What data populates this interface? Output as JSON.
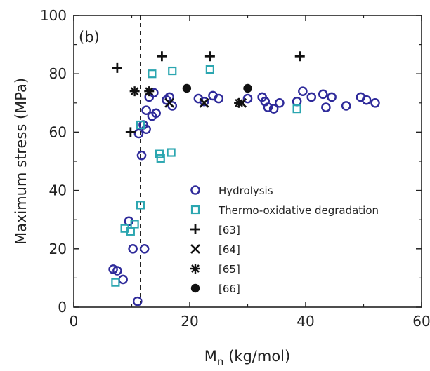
{
  "chart_data": {
    "type": "scatter",
    "panel_label": "(b)",
    "xlabel": "M",
    "xlabel_subscript": "n",
    "xlabel_unit": " (kg/mol)",
    "ylabel": "Maximum stress (MPa)",
    "xlim": [
      0,
      60
    ],
    "ylim": [
      0,
      100
    ],
    "x_ticks": [
      0,
      20,
      40,
      60
    ],
    "y_ticks": [
      0,
      20,
      40,
      60,
      80,
      100
    ],
    "grid": false,
    "legend_position": "bottom-right",
    "vertical_reference_line": {
      "x": 11.5,
      "style": "dashed"
    },
    "series": [
      {
        "name": "Hydrolysis",
        "marker": "circle-open",
        "color": "#2e2a9a",
        "points": [
          [
            6.8,
            13
          ],
          [
            7.5,
            12.5
          ],
          [
            8.5,
            9.5
          ],
          [
            9.5,
            29.5
          ],
          [
            10.2,
            20
          ],
          [
            11,
            2
          ],
          [
            11.7,
            52
          ],
          [
            12.2,
            20
          ],
          [
            11.2,
            59.5
          ],
          [
            12,
            62.5
          ],
          [
            12.5,
            61
          ],
          [
            12.5,
            67.5
          ],
          [
            13,
            72
          ],
          [
            13.5,
            65.5
          ],
          [
            13.8,
            73.5
          ],
          [
            14.2,
            66.5
          ],
          [
            16,
            71
          ],
          [
            16.5,
            72
          ],
          [
            17,
            69
          ],
          [
            21.5,
            71.5
          ],
          [
            22.5,
            70.5
          ],
          [
            24,
            72.5
          ],
          [
            25,
            71.5
          ],
          [
            32.5,
            72
          ],
          [
            33,
            70.5
          ],
          [
            33.5,
            68.5
          ],
          [
            34.5,
            68
          ],
          [
            35.5,
            70
          ],
          [
            38.5,
            70.5
          ],
          [
            39.5,
            74
          ],
          [
            41,
            72
          ],
          [
            43,
            73
          ],
          [
            43.5,
            68.5
          ],
          [
            44.5,
            72
          ],
          [
            47,
            69
          ],
          [
            49.5,
            72
          ],
          [
            50.5,
            71
          ],
          [
            52,
            70
          ],
          [
            30,
            71.5
          ]
        ]
      },
      {
        "name": "Thermo-oxidative degradation",
        "marker": "square-open",
        "color": "#2ba6b0",
        "points": [
          [
            7.2,
            8.5
          ],
          [
            8.8,
            27
          ],
          [
            9.8,
            26
          ],
          [
            10.5,
            28.5
          ],
          [
            11.5,
            35
          ],
          [
            11.5,
            62.5
          ],
          [
            13.5,
            80
          ],
          [
            14.8,
            52.5
          ],
          [
            15,
            51
          ],
          [
            16.8,
            53
          ],
          [
            17,
            81
          ],
          [
            23.5,
            81.5
          ],
          [
            38.5,
            68
          ]
        ]
      },
      {
        "name": "[63]",
        "marker": "plus",
        "color": "#111111",
        "points": [
          [
            7.5,
            82
          ],
          [
            9.8,
            60
          ],
          [
            15.2,
            86
          ],
          [
            23.5,
            86
          ],
          [
            39,
            86
          ]
        ]
      },
      {
        "name": "[64]",
        "marker": "cross",
        "color": "#111111",
        "points": [
          [
            16.5,
            70
          ],
          [
            22.5,
            70
          ],
          [
            29,
            70
          ]
        ]
      },
      {
        "name": "[65]",
        "marker": "asterisk",
        "color": "#111111",
        "points": [
          [
            10.5,
            74
          ],
          [
            13,
            74
          ],
          [
            28.5,
            70
          ]
        ]
      },
      {
        "name": "[66]",
        "marker": "circle-filled",
        "color": "#111111",
        "points": [
          [
            19.5,
            75
          ],
          [
            30,
            75
          ]
        ]
      }
    ]
  }
}
